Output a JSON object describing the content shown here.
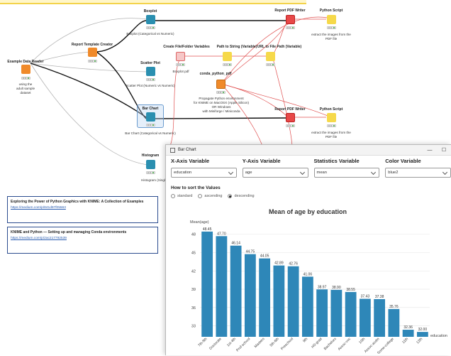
{
  "workflow": {
    "nodes": {
      "data_reader": {
        "title": "Example Data Reader",
        "desc": "using the\nadult sample\ndataset"
      },
      "report_template": {
        "title": "Report Template Creator"
      },
      "boxplot": {
        "title": "Boxplot",
        "desc": "Boxplot (Categorical vs Numeric)"
      },
      "scatter": {
        "title": "Scatter Plot",
        "desc": "Scatter Plot (Numeric vs Numeric)"
      },
      "bar_chart": {
        "title": "Bar Chart",
        "desc": "Bar Chart (Categorical vs Numeric)"
      },
      "histogram": {
        "title": "Histogram",
        "desc": "Histogram (Single Numeric Vari"
      },
      "create_file": {
        "title": "Create File/Folder Variables",
        "desc": "Boxplot pdf"
      },
      "path_to_string": {
        "title": "Path to String (Variable)"
      },
      "url_to_path": {
        "title": "URL to File Path (Variable)"
      },
      "conda": {
        "title": "conda_python_pdf",
        "desc": "Propagate Python environment\nfor KNIME on MacOSX (Apple Silicon)\nOR Windows\nwith Miniforge / Miniconda"
      },
      "pdf_writer_1": {
        "title": "Report PDF Writer"
      },
      "python_1": {
        "title": "Python Script",
        "desc": "extract the images from the\nPDF file"
      },
      "pdf_writer_2": {
        "title": "Report PDF Writer"
      },
      "python_2": {
        "title": "Python Script",
        "desc": "extract the images from the\nPDF file"
      }
    },
    "annotations": [
      {
        "title": "Exploring the Power of Python Graphics with KNIME: A Collection of Examples",
        "link": "https://medium.com/p/841d97f05563"
      },
      {
        "title": "KNIME and Python — Setting up and managing Conda environments",
        "link": "https://medium.com/p/2ac217792539"
      }
    ]
  },
  "dialog": {
    "title": "Bar Chart",
    "controls": {
      "minimize": "—",
      "maximize": "☐",
      "close": "✕"
    },
    "x_axis": {
      "label": "X-Axis Variable",
      "value": "education"
    },
    "y_axis": {
      "label": "Y-Axis Variable",
      "value": "age"
    },
    "stat": {
      "label": "Statistics Variable",
      "value": "mean"
    },
    "color": {
      "label": "Color Variable",
      "value": "blue2"
    },
    "sort": {
      "label": "How to sort the Values",
      "options": [
        "standard",
        "ascending",
        "descending"
      ],
      "selected": "descending"
    }
  },
  "chart_data": {
    "type": "bar",
    "title": "Mean of age by education",
    "ylabel": "Mean(age)",
    "xlabel": "education",
    "bar_color": "#2e87b8",
    "categories": [
      "7th-8th",
      "Doctorate",
      "1st-4th",
      "Prof-school",
      "Masters",
      "5th-6th",
      "Preschool",
      "9th",
      "HS-grad",
      "Bachelors",
      "Assoc-voc",
      "10th",
      "Assoc-acdm",
      "Some-college",
      "11th",
      "12th"
    ],
    "values": [
      48.45,
      47.7,
      46.14,
      44.75,
      44.05,
      42.89,
      42.76,
      41.06,
      38.97,
      38.9,
      38.55,
      37.43,
      37.38,
      35.76,
      32.36,
      32.0
    ],
    "value_labels": [
      "48.45",
      "47.70",
      "46.14",
      "44.75",
      "44.05",
      "42.89",
      "42.76",
      "41.06",
      "38.97",
      "38.90",
      "38.55",
      "37.43",
      "37.38",
      "35.76",
      "32.36",
      "32.00"
    ],
    "yticks": [
      33,
      36,
      39,
      42,
      45,
      48
    ],
    "ylim": [
      31.2,
      49.6
    ],
    "grid": true
  }
}
